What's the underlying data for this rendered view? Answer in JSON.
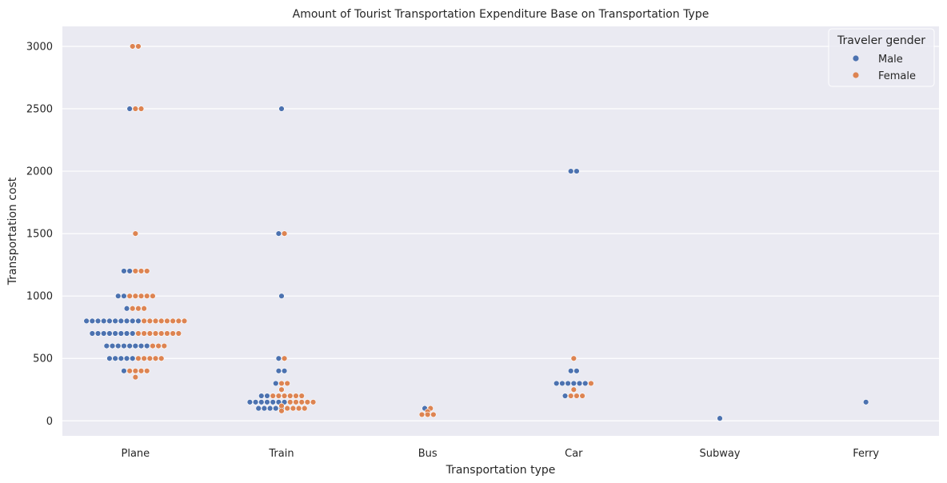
{
  "chart_data": {
    "type": "scatter",
    "title": "Amount of Tourist Transportation Expenditure Base on Transportation Type",
    "xlabel": "Transportation type",
    "ylabel": "Transportation cost",
    "categories": [
      "Plane",
      "Train",
      "Bus",
      "Car",
      "Subway",
      "Ferry"
    ],
    "ylim": [
      -120,
      3160
    ],
    "yticks": [
      0,
      500,
      1000,
      1500,
      2000,
      2500,
      3000
    ],
    "grid": true,
    "legend": {
      "title": "Traveler gender",
      "placement": "top-right",
      "entries": [
        {
          "name": "Male",
          "color": "#4c72b0"
        },
        {
          "name": "Female",
          "color": "#dd8452"
        }
      ]
    },
    "series": [
      {
        "name": "Male",
        "color": "#4c72b0",
        "points": [
          [
            "Plane",
            2500
          ],
          [
            "Plane",
            1200
          ],
          [
            "Plane",
            1200
          ],
          [
            "Plane",
            1000
          ],
          [
            "Plane",
            1000
          ],
          [
            "Plane",
            900
          ],
          [
            "Plane",
            800
          ],
          [
            "Plane",
            800
          ],
          [
            "Plane",
            800
          ],
          [
            "Plane",
            800
          ],
          [
            "Plane",
            800
          ],
          [
            "Plane",
            800
          ],
          [
            "Plane",
            800
          ],
          [
            "Plane",
            800
          ],
          [
            "Plane",
            800
          ],
          [
            "Plane",
            800
          ],
          [
            "Plane",
            700
          ],
          [
            "Plane",
            700
          ],
          [
            "Plane",
            700
          ],
          [
            "Plane",
            700
          ],
          [
            "Plane",
            700
          ],
          [
            "Plane",
            700
          ],
          [
            "Plane",
            700
          ],
          [
            "Plane",
            700
          ],
          [
            "Plane",
            600
          ],
          [
            "Plane",
            600
          ],
          [
            "Plane",
            600
          ],
          [
            "Plane",
            600
          ],
          [
            "Plane",
            600
          ],
          [
            "Plane",
            600
          ],
          [
            "Plane",
            600
          ],
          [
            "Plane",
            600
          ],
          [
            "Plane",
            500
          ],
          [
            "Plane",
            500
          ],
          [
            "Plane",
            500
          ],
          [
            "Plane",
            500
          ],
          [
            "Plane",
            500
          ],
          [
            "Plane",
            400
          ],
          [
            "Train",
            2500
          ],
          [
            "Train",
            1500
          ],
          [
            "Train",
            1000
          ],
          [
            "Train",
            500
          ],
          [
            "Train",
            400
          ],
          [
            "Train",
            400
          ],
          [
            "Train",
            300
          ],
          [
            "Train",
            200
          ],
          [
            "Train",
            200
          ],
          [
            "Train",
            150
          ],
          [
            "Train",
            150
          ],
          [
            "Train",
            150
          ],
          [
            "Train",
            150
          ],
          [
            "Train",
            150
          ],
          [
            "Train",
            150
          ],
          [
            "Train",
            150
          ],
          [
            "Train",
            100
          ],
          [
            "Train",
            100
          ],
          [
            "Train",
            100
          ],
          [
            "Train",
            100
          ],
          [
            "Train",
            100
          ],
          [
            "Bus",
            100
          ],
          [
            "Car",
            2000
          ],
          [
            "Car",
            2000
          ],
          [
            "Car",
            400
          ],
          [
            "Car",
            400
          ],
          [
            "Car",
            300
          ],
          [
            "Car",
            300
          ],
          [
            "Car",
            300
          ],
          [
            "Car",
            300
          ],
          [
            "Car",
            300
          ],
          [
            "Car",
            300
          ],
          [
            "Car",
            200
          ],
          [
            "Subway",
            20
          ],
          [
            "Ferry",
            150
          ]
        ]
      },
      {
        "name": "Female",
        "color": "#dd8452",
        "points": [
          [
            "Plane",
            3000
          ],
          [
            "Plane",
            3000
          ],
          [
            "Plane",
            2500
          ],
          [
            "Plane",
            2500
          ],
          [
            "Plane",
            1500
          ],
          [
            "Plane",
            1200
          ],
          [
            "Plane",
            1200
          ],
          [
            "Plane",
            1200
          ],
          [
            "Plane",
            1000
          ],
          [
            "Plane",
            1000
          ],
          [
            "Plane",
            1000
          ],
          [
            "Plane",
            1000
          ],
          [
            "Plane",
            1000
          ],
          [
            "Plane",
            900
          ],
          [
            "Plane",
            900
          ],
          [
            "Plane",
            900
          ],
          [
            "Plane",
            800
          ],
          [
            "Plane",
            800
          ],
          [
            "Plane",
            800
          ],
          [
            "Plane",
            800
          ],
          [
            "Plane",
            800
          ],
          [
            "Plane",
            800
          ],
          [
            "Plane",
            800
          ],
          [
            "Plane",
            800
          ],
          [
            "Plane",
            700
          ],
          [
            "Plane",
            700
          ],
          [
            "Plane",
            700
          ],
          [
            "Plane",
            700
          ],
          [
            "Plane",
            700
          ],
          [
            "Plane",
            700
          ],
          [
            "Plane",
            700
          ],
          [
            "Plane",
            700
          ],
          [
            "Plane",
            600
          ],
          [
            "Plane",
            600
          ],
          [
            "Plane",
            600
          ],
          [
            "Plane",
            500
          ],
          [
            "Plane",
            500
          ],
          [
            "Plane",
            500
          ],
          [
            "Plane",
            500
          ],
          [
            "Plane",
            500
          ],
          [
            "Plane",
            400
          ],
          [
            "Plane",
            400
          ],
          [
            "Plane",
            400
          ],
          [
            "Plane",
            400
          ],
          [
            "Plane",
            350
          ],
          [
            "Train",
            1500
          ],
          [
            "Train",
            500
          ],
          [
            "Train",
            300
          ],
          [
            "Train",
            300
          ],
          [
            "Train",
            250
          ],
          [
            "Train",
            200
          ],
          [
            "Train",
            200
          ],
          [
            "Train",
            200
          ],
          [
            "Train",
            200
          ],
          [
            "Train",
            200
          ],
          [
            "Train",
            200
          ],
          [
            "Train",
            150
          ],
          [
            "Train",
            150
          ],
          [
            "Train",
            150
          ],
          [
            "Train",
            150
          ],
          [
            "Train",
            150
          ],
          [
            "Train",
            120
          ],
          [
            "Train",
            100
          ],
          [
            "Train",
            100
          ],
          [
            "Train",
            100
          ],
          [
            "Train",
            100
          ],
          [
            "Train",
            80
          ],
          [
            "Bus",
            100
          ],
          [
            "Bus",
            75
          ],
          [
            "Bus",
            50
          ],
          [
            "Bus",
            50
          ],
          [
            "Bus",
            50
          ],
          [
            "Car",
            500
          ],
          [
            "Car",
            300
          ],
          [
            "Car",
            250
          ],
          [
            "Car",
            200
          ],
          [
            "Car",
            200
          ],
          [
            "Car",
            200
          ]
        ]
      }
    ]
  }
}
